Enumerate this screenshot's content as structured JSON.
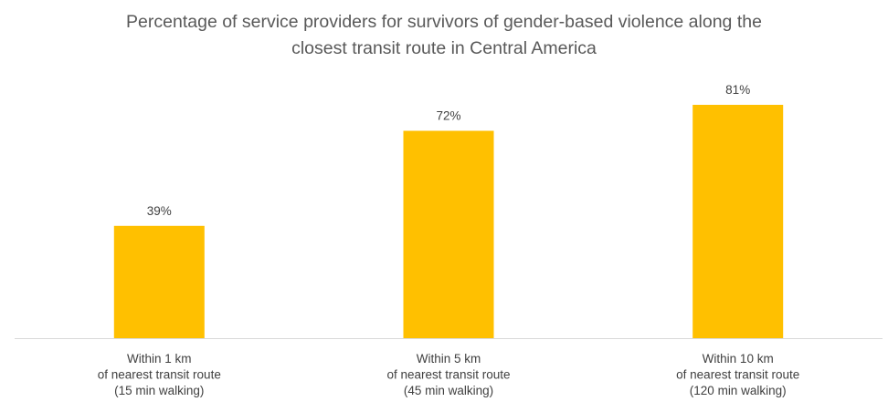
{
  "title_lines": [
    "Percentage of service providers for survivors of gender-based violence along the",
    "closest transit route in Central America"
  ],
  "colors": {
    "bar": "#FFC000",
    "axis": "#D9D9D9",
    "title": "#595959",
    "labels": "#404040"
  },
  "chart_data": {
    "type": "bar",
    "title": "Percentage of service providers for survivors of gender-based violence along the closest transit route in Central America",
    "categories": [
      [
        "Within 1 km",
        "of nearest transit route",
        "(15 min walking)"
      ],
      [
        "Within 5 km",
        "of nearest transit route",
        "(45 min walking)"
      ],
      [
        "Within 10 km",
        "of nearest transit route",
        "(120 min walking)"
      ]
    ],
    "values": [
      39,
      72,
      81
    ],
    "data_labels": [
      "39%",
      "72%",
      "81%"
    ],
    "unit": "%",
    "xlabel": "",
    "ylabel": "",
    "ylim": [
      0,
      100
    ],
    "grid": false,
    "legend": "none"
  }
}
